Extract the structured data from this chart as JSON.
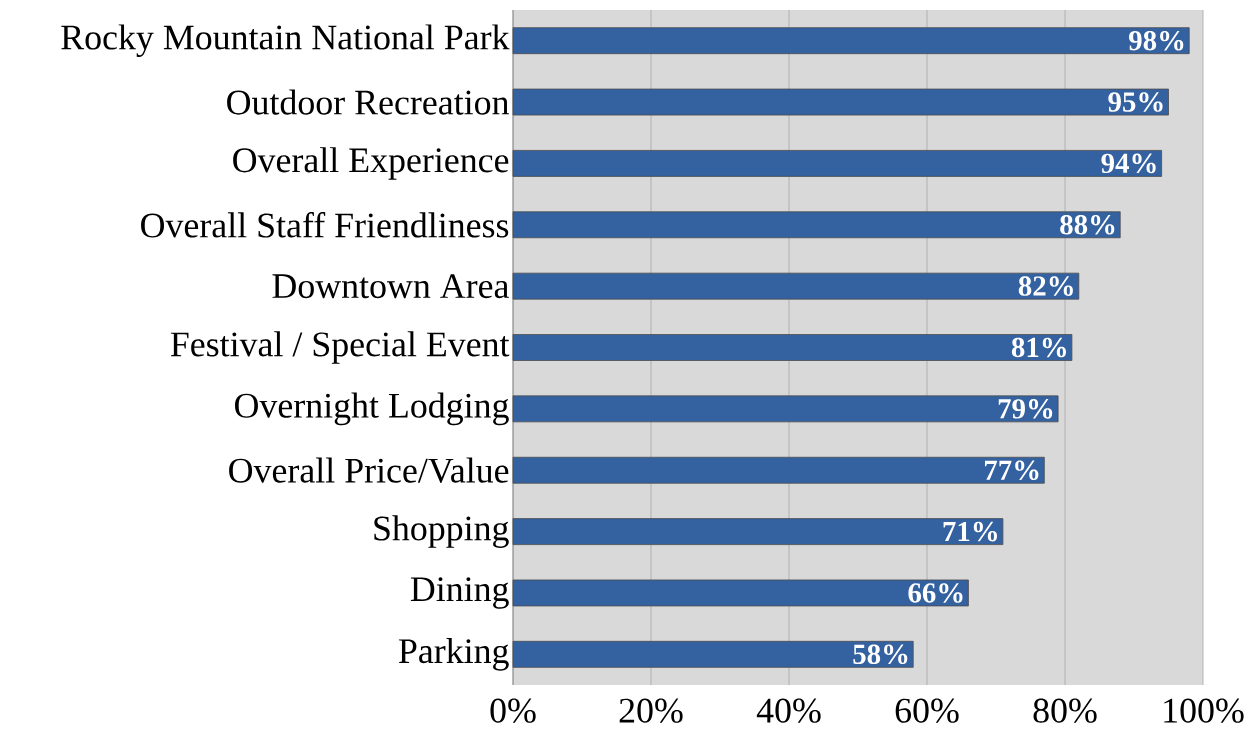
{
  "chart_data": {
    "type": "bar",
    "orientation": "horizontal",
    "categories": [
      "Rocky Mountain National Park",
      "Outdoor Recreation",
      "Overall Experience",
      "Overall Staff Friendliness",
      "Downtown Area",
      "Festival / Special Event",
      "Overnight Lodging",
      "Overall Price/Value",
      "Shopping",
      "Dining",
      "Parking"
    ],
    "values": [
      98,
      95,
      94,
      88,
      82,
      81,
      79,
      77,
      71,
      66,
      58
    ],
    "value_labels": [
      "98%",
      "95%",
      "94%",
      "88%",
      "82%",
      "81%",
      "79%",
      "77%",
      "71%",
      "66%",
      "58%"
    ],
    "color": "#3461a0",
    "xlim": [
      0,
      100
    ],
    "xticks": [
      {
        "value": 0,
        "label": "0%"
      },
      {
        "value": 20,
        "label": "20%"
      },
      {
        "value": 40,
        "label": "40%"
      },
      {
        "value": 60,
        "label": "60%"
      },
      {
        "value": 80,
        "label": "80%"
      },
      {
        "value": 100,
        "label": "100%"
      }
    ],
    "grid": "x"
  }
}
